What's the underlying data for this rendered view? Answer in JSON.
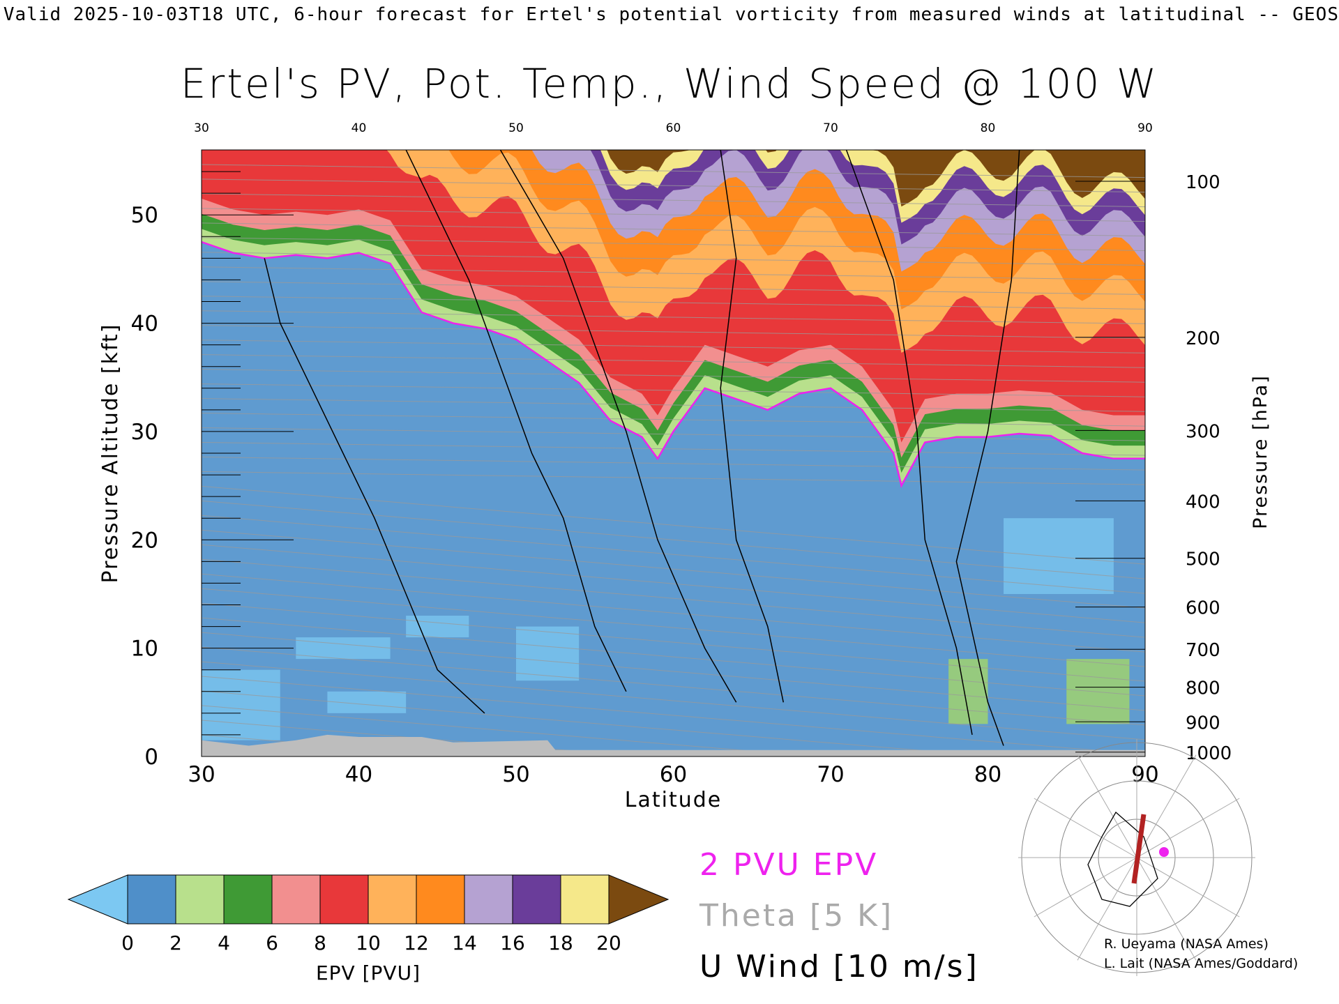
{
  "header_line": "Valid 2025-10-03T18 UTC, 6-hour forecast for Ertel's potential vorticity from measured winds at latitudinal -- GEOS",
  "chart_data": {
    "type": "heatmap",
    "title": "Ertel's PV, Pot. Temp., Wind Speed @ 100 W",
    "xlabel": "Latitude",
    "ylabel": "Pressure Altitude [kft]",
    "ylabel_right": "Pressure [hPa]",
    "xlim": [
      30,
      90
    ],
    "ylim": [
      0,
      56
    ],
    "x_ticks": [
      "30",
      "40",
      "50",
      "60",
      "70",
      "80",
      "90"
    ],
    "y_ticks": [
      "0",
      "10",
      "20",
      "30",
      "40",
      "50"
    ],
    "pressure_ticks": [
      {
        "label": "100",
        "kft": 53.1
      },
      {
        "label": "200",
        "kft": 38.7
      },
      {
        "label": "300",
        "kft": 30.1
      },
      {
        "label": "400",
        "kft": 23.6
      },
      {
        "label": "500",
        "kft": 18.3
      },
      {
        "label": "600",
        "kft": 13.8
      },
      {
        "label": "700",
        "kft": 9.9
      },
      {
        "label": "800",
        "kft": 6.4
      },
      {
        "label": "900",
        "kft": 3.2
      },
      {
        "label": "1000",
        "kft": 0.4
      }
    ],
    "tropopause_2pvu_kft": {
      "lat": [
        30,
        32,
        34,
        36,
        38,
        40,
        42,
        44,
        46,
        48,
        50,
        52,
        54,
        56,
        58,
        59,
        60,
        62,
        64,
        66,
        68,
        70,
        72,
        74,
        74.5,
        76,
        78,
        80,
        82,
        84,
        86,
        88,
        90
      ],
      "alt": [
        47.5,
        46.5,
        46.0,
        46.3,
        46.0,
        46.5,
        45.5,
        41.0,
        40.0,
        39.5,
        38.5,
        36.5,
        34.5,
        31.0,
        29.5,
        27.5,
        30.0,
        34.0,
        33.0,
        32.0,
        33.5,
        34.0,
        32.0,
        28.0,
        25.0,
        29.0,
        29.5,
        29.5,
        29.8,
        29.6,
        28.0,
        27.5,
        27.5
      ]
    },
    "epv_colorbar": {
      "label": "EPV [PVU]",
      "ticks": [
        "0",
        "2",
        "4",
        "6",
        "8",
        "10",
        "12",
        "14",
        "16",
        "18",
        "20"
      ],
      "colors": [
        "#4f8fc9",
        "#b8e08c",
        "#3f9a35",
        "#f28f8f",
        "#e8383a",
        "#ffb25a",
        "#ff8a1e",
        "#b5a2d2",
        "#6a3d9a",
        "#f5e88a"
      ],
      "under_color": "#7cc8f2",
      "over_color": "#7b4a10"
    },
    "ground_color": "#bdbdbd"
  },
  "legend": {
    "pvu": "2 PVU EPV",
    "theta": "Theta [5 K]",
    "wind": "U Wind [10 m/s]",
    "colors": {
      "pvu": "#ee22ee",
      "theta": "#aaaaaa",
      "wind": "#000000"
    }
  },
  "credits": {
    "line1": "R. Ueyama (NASA Ames)",
    "line2": "L. Lait (NASA Ames/Goddard)"
  }
}
